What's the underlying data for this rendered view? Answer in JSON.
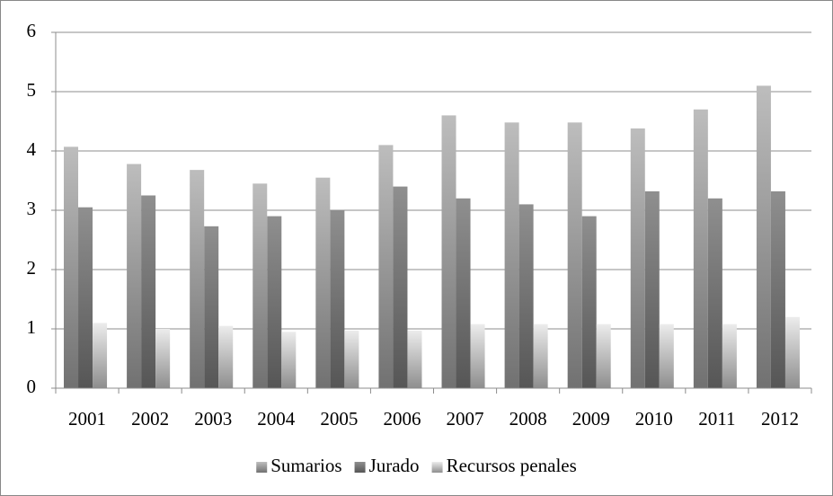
{
  "chart_data": {
    "type": "bar",
    "categories": [
      "2001",
      "2002",
      "2003",
      "2004",
      "2005",
      "2006",
      "2007",
      "2008",
      "2009",
      "2010",
      "2011",
      "2012"
    ],
    "series": [
      {
        "name": "Sumarios",
        "color": "#bdbdbd",
        "values": [
          4.07,
          3.78,
          3.68,
          3.45,
          3.55,
          4.1,
          4.6,
          4.48,
          4.48,
          4.38,
          4.7,
          5.1
        ]
      },
      {
        "name": "Jurado",
        "color": "#8f8f8f",
        "values": [
          3.05,
          3.25,
          2.73,
          2.9,
          3.0,
          3.4,
          3.2,
          3.1,
          2.9,
          3.32,
          3.2,
          3.32
        ]
      },
      {
        "name": "Recursos penales",
        "color": "#ececec",
        "values": [
          1.1,
          1.0,
          1.05,
          0.95,
          0.97,
          0.97,
          1.08,
          1.08,
          1.08,
          1.08,
          1.08,
          1.2
        ]
      }
    ],
    "ylim": [
      0,
      6
    ],
    "yticks": [
      0,
      1,
      2,
      3,
      4,
      5,
      6
    ],
    "grid": true,
    "legend": "bottom"
  }
}
